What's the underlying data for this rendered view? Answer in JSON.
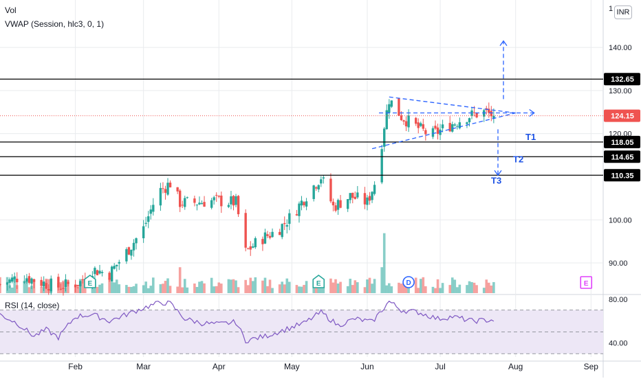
{
  "legend": {
    "volume_label": "Vol",
    "vwap_label": "VWAP (Session, hlc3, 0, 1)",
    "rsi_label": "RSI (14, close)"
  },
  "currency": "INR",
  "colors": {
    "up": "#26a69a",
    "down": "#ef5350",
    "pattern": "#2962ff",
    "level": "#000000",
    "last_price_line": "#ef5350",
    "rsi": "#7e57c2",
    "rsi_band": "#ede7f6",
    "grid": "#e9ebee",
    "earnings": "#26a69a",
    "dividend": "#2962ff",
    "earnings_upcoming": "#e040fb"
  },
  "chart_data": [
    {
      "type": "candlestick",
      "title": "",
      "price_axis": {
        "ticks": [
          "90.00",
          "100.00",
          "120.00",
          "130.00",
          "140.00"
        ],
        "ylim": [
          83,
          151
        ],
        "clipped_top_tick": "1"
      },
      "x_axis": {
        "ticks": [
          "Feb",
          "Mar",
          "Apr",
          "May",
          "Jun",
          "Jul",
          "Aug",
          "Sep"
        ],
        "range": [
          "2021-01-01",
          "2021-09-06"
        ]
      },
      "last_price": {
        "value": 124.15,
        "label": "124.15"
      },
      "levels": [
        {
          "value": 132.65,
          "label": "132.65"
        },
        {
          "value": 118.05,
          "label": "118.05"
        },
        {
          "value": 114.65,
          "label": "114.65"
        },
        {
          "value": 110.35,
          "label": "110.35"
        }
      ],
      "targets": [
        {
          "label": "T1",
          "value": 118.05
        },
        {
          "label": "T2",
          "value": 114.65
        },
        {
          "label": "T3",
          "value": 110.35
        }
      ],
      "ohlc_anchors": [
        [
          "2021-01-01",
          85.0
        ],
        [
          "2021-01-10",
          87.0
        ],
        [
          "2021-01-18",
          85.5
        ],
        [
          "2021-01-25",
          84.5
        ],
        [
          "2021-02-03",
          85.5
        ],
        [
          "2021-02-08",
          88.5
        ],
        [
          "2021-02-15",
          87.5
        ],
        [
          "2021-02-22",
          92.5
        ],
        [
          "2021-03-01",
          98.0
        ],
        [
          "2021-03-07",
          106.5
        ],
        [
          "2021-03-12",
          108.5
        ],
        [
          "2021-03-16",
          104.0
        ],
        [
          "2021-03-22",
          104.0
        ],
        [
          "2021-03-30",
          104.5
        ],
        [
          "2021-04-08",
          104.0
        ],
        [
          "2021-04-12",
          92.5
        ],
        [
          "2021-04-18",
          95.5
        ],
        [
          "2021-04-25",
          97.5
        ],
        [
          "2021-05-01",
          101.0
        ],
        [
          "2021-05-08",
          106.5
        ],
        [
          "2021-05-13",
          110.0
        ],
        [
          "2021-05-18",
          103.0
        ],
        [
          "2021-05-25",
          105.5
        ],
        [
          "2021-06-01",
          104.0
        ],
        [
          "2021-06-05",
          110.0
        ],
        [
          "2021-06-08",
          122.0
        ],
        [
          "2021-06-10",
          128.0
        ],
        [
          "2021-06-15",
          124.0
        ],
        [
          "2021-06-20",
          122.0
        ],
        [
          "2021-06-27",
          119.5
        ],
        [
          "2021-07-05",
          122.0
        ],
        [
          "2021-07-12",
          124.0
        ],
        [
          "2021-07-19",
          125.0
        ],
        [
          "2021-07-23",
          124.15
        ]
      ],
      "volume_spikes": [
        {
          "date": "2021-06-07",
          "level": 0.32
        },
        {
          "date": "2021-06-08",
          "level": 0.74
        },
        {
          "date": "2021-03-16",
          "level": 0.32
        },
        {
          "date": "2021-02-07",
          "level": 0.3
        }
      ],
      "events": [
        {
          "type": "earnings",
          "date": "2021-02-07",
          "label": "E"
        },
        {
          "type": "earnings",
          "date": "2021-05-12",
          "label": "E"
        },
        {
          "type": "dividend",
          "date": "2021-06-18",
          "label": "D"
        },
        {
          "type": "earnings_upcoming",
          "date": "2021-08-30",
          "label": "E"
        }
      ],
      "pattern": {
        "name": "symmetrical triangle",
        "upper_line": [
          [
            "2021-06-10",
            128.5
          ],
          [
            "2021-08-01",
            124.8
          ]
        ],
        "lower_line": [
          [
            "2021-06-03",
            116.5
          ],
          [
            "2021-08-01",
            124.8
          ]
        ],
        "breakout_arrow": {
          "date": "2021-07-27",
          "from": 128.0,
          "to": 141.5
        },
        "breakdown_arrow": {
          "date": "2021-07-27",
          "from": 121.0,
          "to": 110.35
        }
      }
    },
    {
      "type": "line",
      "title": "RSI (14, close)",
      "y_axis": {
        "ticks": [
          "40.00",
          "80.00"
        ],
        "ylim": [
          27,
          83
        ]
      },
      "band": [
        30,
        70
      ],
      "mid": 50,
      "series": [
        {
          "name": "RSI (14, close)",
          "points": [
            [
              "2021-01-01",
              66
            ],
            [
              "2021-01-08",
              58
            ],
            [
              "2021-01-15",
              46
            ],
            [
              "2021-01-20",
              52
            ],
            [
              "2021-01-25",
              45
            ],
            [
              "2021-02-01",
              64
            ],
            [
              "2021-02-08",
              66
            ],
            [
              "2021-02-15",
              60
            ],
            [
              "2021-02-22",
              66
            ],
            [
              "2021-03-01",
              72
            ],
            [
              "2021-03-08",
              77
            ],
            [
              "2021-03-12",
              76
            ],
            [
              "2021-03-18",
              62
            ],
            [
              "2021-03-25",
              58
            ],
            [
              "2021-04-01",
              57
            ],
            [
              "2021-04-08",
              59
            ],
            [
              "2021-04-12",
              42
            ],
            [
              "2021-04-20",
              46
            ],
            [
              "2021-04-28",
              52
            ],
            [
              "2021-05-06",
              58
            ],
            [
              "2021-05-13",
              68
            ],
            [
              "2021-05-20",
              56
            ],
            [
              "2021-05-27",
              62
            ],
            [
              "2021-06-03",
              59
            ],
            [
              "2021-06-10",
              78
            ],
            [
              "2021-06-15",
              70
            ],
            [
              "2021-06-22",
              68
            ],
            [
              "2021-06-30",
              62
            ],
            [
              "2021-07-06",
              64
            ],
            [
              "2021-07-14",
              60
            ],
            [
              "2021-07-23",
              61
            ]
          ]
        }
      ]
    }
  ]
}
